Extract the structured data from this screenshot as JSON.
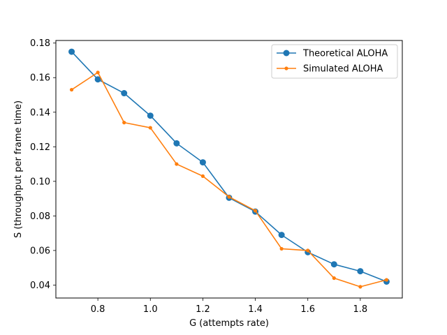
{
  "chart_data": {
    "type": "line",
    "title": "",
    "xlabel": "G (attempts rate)",
    "ylabel": "S (throughput per frame time)",
    "xlim": [
      0.64,
      1.96
    ],
    "ylim": [
      0.0325,
      0.1815
    ],
    "xticks": [
      0.8,
      1.0,
      1.2,
      1.4,
      1.6,
      1.8
    ],
    "xtick_labels": [
      "0.8",
      "1.0",
      "1.2",
      "1.4",
      "1.6",
      "1.8"
    ],
    "yticks": [
      0.04,
      0.06,
      0.08,
      0.1,
      0.12,
      0.14,
      0.16,
      0.18
    ],
    "ytick_labels": [
      "0.04",
      "0.06",
      "0.08",
      "0.10",
      "0.12",
      "0.14",
      "0.16",
      "0.18"
    ],
    "grid": false,
    "legend_position": "top-right",
    "x": [
      0.7,
      0.8,
      0.9,
      1.0,
      1.1,
      1.2,
      1.3,
      1.4,
      1.5,
      1.6,
      1.7,
      1.8,
      1.9
    ],
    "series": [
      {
        "name": "Theoretical ALOHA",
        "color": "#1f77b4",
        "marker": "circle-large",
        "values": [
          0.175,
          0.159,
          0.151,
          0.138,
          0.122,
          0.111,
          0.0905,
          0.0825,
          0.069,
          0.059,
          0.052,
          0.048,
          0.042
        ]
      },
      {
        "name": "Simulated ALOHA",
        "color": "#ff7f0e",
        "marker": "circle-small",
        "values": [
          0.153,
          0.163,
          0.134,
          0.131,
          0.11,
          0.103,
          0.091,
          0.083,
          0.061,
          0.06,
          0.044,
          0.039,
          0.043
        ]
      }
    ]
  }
}
